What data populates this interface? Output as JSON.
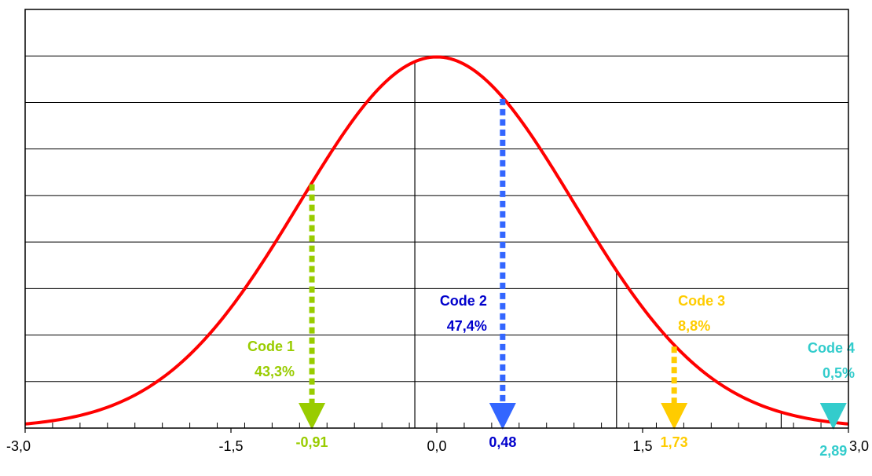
{
  "chart_data": {
    "type": "line",
    "title": "",
    "xlabel": "",
    "ylabel": "",
    "xlim": [
      -3.0,
      3.0
    ],
    "ylim": [
      0,
      0.45
    ],
    "x_ticks": [
      -3.0,
      -1.5,
      0.0,
      1.5,
      3.0
    ],
    "x_tick_labels": [
      "-3,0",
      "-1,5",
      "0,0",
      "1,5",
      "3,0"
    ],
    "minor_tick_step": 0.2,
    "y_gridlines": [
      0.05,
      0.1,
      0.15,
      0.2,
      0.25,
      0.3,
      0.35,
      0.4
    ],
    "show_y_tick_labels": false,
    "curve": {
      "description_key": "standard-normal-density",
      "mean": 0,
      "sd": 1,
      "color": "#ff0000"
    },
    "vertical_reference_lines": [
      -0.16,
      1.31,
      2.51
    ],
    "markers": [
      {
        "id": "code1",
        "x": -0.91,
        "label": "-0,91",
        "name": "Code 1",
        "percent": "43,3%",
        "color": "#99cc00"
      },
      {
        "id": "code2",
        "x": 0.48,
        "label": "0,48",
        "name": "Code 2",
        "percent": "47,4%",
        "color": "#3366ff",
        "label_color": "#0000cc"
      },
      {
        "id": "code3",
        "x": 1.73,
        "label": "1,73",
        "name": "Code 3",
        "percent": "8,8%",
        "color": "#ffcc00"
      },
      {
        "id": "code4",
        "x": 2.89,
        "label": "2,89",
        "name": "Code 4",
        "percent": "0,5%",
        "color": "#33cccc"
      }
    ]
  }
}
